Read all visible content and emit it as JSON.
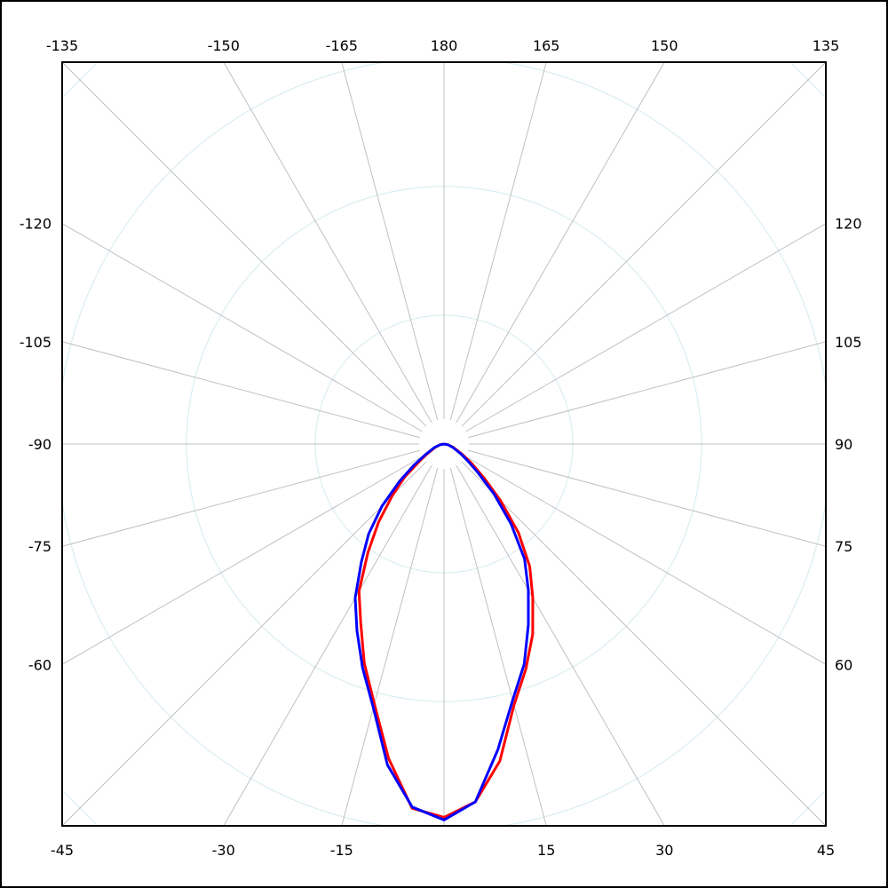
{
  "chart_data": {
    "type": "polar",
    "angle_zero": "bottom",
    "angle_direction": "positive-to-right",
    "radial_range": [
      0,
      4
    ],
    "radial_rings": [
      1,
      2,
      3,
      4
    ],
    "radial_labels_shown": false,
    "spoke_step_degrees": 15,
    "grid": true,
    "colors": {
      "spokes": "#c0c0c0",
      "rings": "#d4eaf0",
      "frame": "#000000"
    },
    "tick_labels": {
      "top": [
        "-135",
        "-150",
        "-165",
        "180",
        "165",
        "150",
        "135"
      ],
      "left": [
        "-120",
        "-105",
        "-90",
        "-75",
        "-60"
      ],
      "right": [
        "120",
        "105",
        "90",
        "75",
        "60"
      ],
      "bottom": [
        "-45",
        "-30",
        "-15",
        "15",
        "30",
        "45"
      ]
    },
    "angles": [
      -90,
      -80,
      -70,
      -60,
      -55,
      -50,
      -45,
      -40,
      -35,
      -30,
      -25,
      -20,
      -15,
      -10,
      -5,
      0,
      5,
      10,
      15,
      20,
      25,
      30,
      35,
      40,
      45,
      50,
      55,
      60,
      70,
      80,
      90
    ],
    "series": [
      {
        "color": "#ff0000",
        "values": [
          0,
          0.03,
          0.07,
          0.15,
          0.23,
          0.4,
          0.57,
          0.79,
          1.03,
          1.32,
          1.53,
          1.81,
          2.09,
          2.48,
          2.84,
          2.9,
          2.79,
          2.5,
          2.1,
          1.86,
          1.63,
          1.38,
          1.16,
          0.9,
          0.62,
          0.4,
          0.26,
          0.17,
          0.08,
          0.03,
          0
        ]
      },
      {
        "color": "#0000ff",
        "values": [
          0,
          0.03,
          0.08,
          0.17,
          0.28,
          0.45,
          0.68,
          0.91,
          1.12,
          1.38,
          1.6,
          1.85,
          2.12,
          2.53,
          2.83,
          2.92,
          2.79,
          2.41,
          2.06,
          1.82,
          1.55,
          1.31,
          1.09,
          0.81,
          0.55,
          0.34,
          0.22,
          0.15,
          0.07,
          0.03,
          0
        ]
      }
    ]
  }
}
